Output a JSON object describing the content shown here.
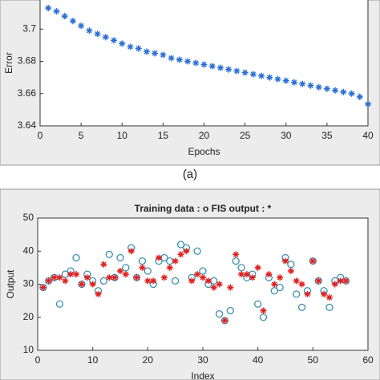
{
  "chart_data": [
    {
      "type": "scatter",
      "marker": "*",
      "color": "#2a6fd6",
      "x_label": "Epochs",
      "y_label": "Error",
      "caption": "(a)",
      "x": [
        1,
        2,
        3,
        4,
        5,
        6,
        7,
        8,
        9,
        10,
        11,
        12,
        13,
        14,
        15,
        16,
        17,
        18,
        19,
        20,
        21,
        22,
        23,
        24,
        25,
        26,
        27,
        28,
        29,
        30,
        31,
        32,
        33,
        34,
        35,
        36,
        37,
        38,
        39,
        40
      ],
      "series": [
        {
          "values": [
            3.713,
            3.711,
            3.708,
            3.705,
            3.702,
            3.699,
            3.697,
            3.695,
            3.693,
            3.691,
            3.689,
            3.688,
            3.686,
            3.685,
            3.684,
            3.682,
            3.681,
            3.68,
            3.679,
            3.678,
            3.677,
            3.676,
            3.675,
            3.674,
            3.673,
            3.672,
            3.671,
            3.67,
            3.669,
            3.668,
            3.667,
            3.666,
            3.665,
            3.664,
            3.663,
            3.662,
            3.661,
            3.66,
            3.658,
            3.6535
          ],
          "color": "#2a6fd6",
          "marker": "*"
        }
      ],
      "xlim": [
        0,
        40
      ],
      "xticks": [
        0,
        5,
        10,
        15,
        20,
        25,
        30,
        35,
        40
      ],
      "ylim": [
        3.64,
        3.72
      ],
      "yticks": [
        3.64,
        3.66,
        3.68,
        3.7,
        3.72
      ]
    },
    {
      "type": "scatter",
      "title": "Training data : o    FIS output : *",
      "x_label": "Index",
      "y_label": "Output",
      "x": [
        1,
        2,
        3,
        4,
        5,
        6,
        7,
        8,
        9,
        10,
        11,
        12,
        13,
        14,
        15,
        16,
        17,
        18,
        19,
        20,
        21,
        22,
        23,
        24,
        25,
        26,
        27,
        28,
        29,
        30,
        31,
        32,
        33,
        34,
        35,
        36,
        37,
        38,
        39,
        40,
        41,
        42,
        43,
        44,
        45,
        46,
        47,
        48,
        49,
        50,
        51,
        52,
        53,
        54,
        55,
        56
      ],
      "series": [
        {
          "marker": "o",
          "color": "#3a8fb0",
          "values": [
            29,
            31,
            32,
            24,
            33,
            34,
            38,
            30,
            33,
            31,
            28,
            31,
            39,
            32,
            38,
            35,
            41,
            32,
            37,
            34,
            30,
            37,
            38,
            37,
            31,
            42,
            41,
            32,
            40,
            34,
            30,
            31,
            21,
            19,
            22,
            37,
            35,
            32,
            33,
            24,
            20,
            32,
            28,
            29,
            38,
            36,
            27,
            23,
            28,
            37,
            31,
            28,
            23,
            31,
            32,
            31
          ]
        },
        {
          "marker": "*",
          "color": "#e02020",
          "values": [
            29,
            31,
            32,
            32,
            31,
            33,
            33,
            30,
            32,
            30,
            27,
            36,
            32,
            32,
            34,
            33,
            40,
            32,
            35,
            31,
            31,
            38,
            32,
            35,
            37,
            39,
            40,
            31,
            33,
            32,
            31,
            29,
            30,
            19,
            29,
            39,
            33,
            33,
            32,
            35,
            22,
            33,
            30,
            32,
            37,
            34,
            31,
            30,
            27,
            37,
            31,
            27,
            26,
            30,
            31,
            31
          ]
        }
      ],
      "xlim": [
        0,
        60
      ],
      "xticks": [
        0,
        10,
        20,
        30,
        40,
        50,
        60
      ],
      "ylim": [
        10,
        50
      ],
      "yticks": [
        10,
        20,
        30,
        40,
        50
      ]
    }
  ]
}
